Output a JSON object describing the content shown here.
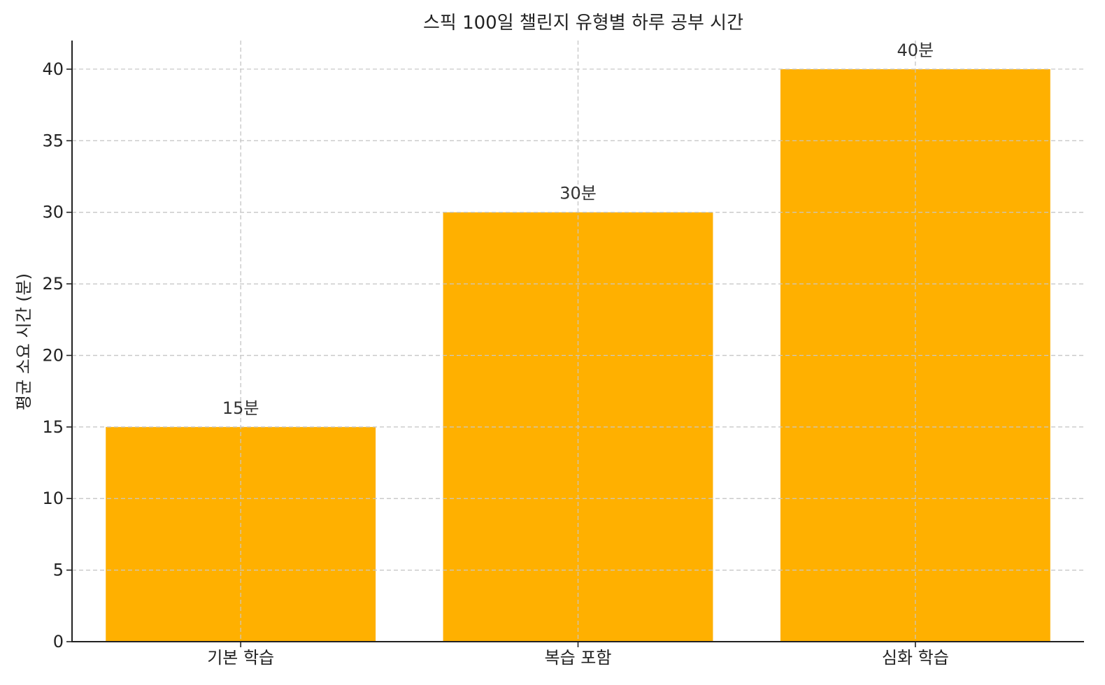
{
  "chart_data": {
    "type": "bar",
    "title": "스픽 100일 챌린지 유형별 하루 공부 시간",
    "xlabel": "",
    "ylabel": "평균 소요 시간 (분)",
    "categories": [
      "기본 학습",
      "복습 포함",
      "심화 학습"
    ],
    "values": [
      15,
      30,
      40
    ],
    "data_labels": [
      "15분",
      "30분",
      "40분"
    ],
    "ylim": [
      0,
      42
    ],
    "yticks": [
      0,
      5,
      10,
      15,
      20,
      25,
      30,
      35,
      40
    ],
    "grid": true,
    "bar_color": "#FFB000"
  }
}
